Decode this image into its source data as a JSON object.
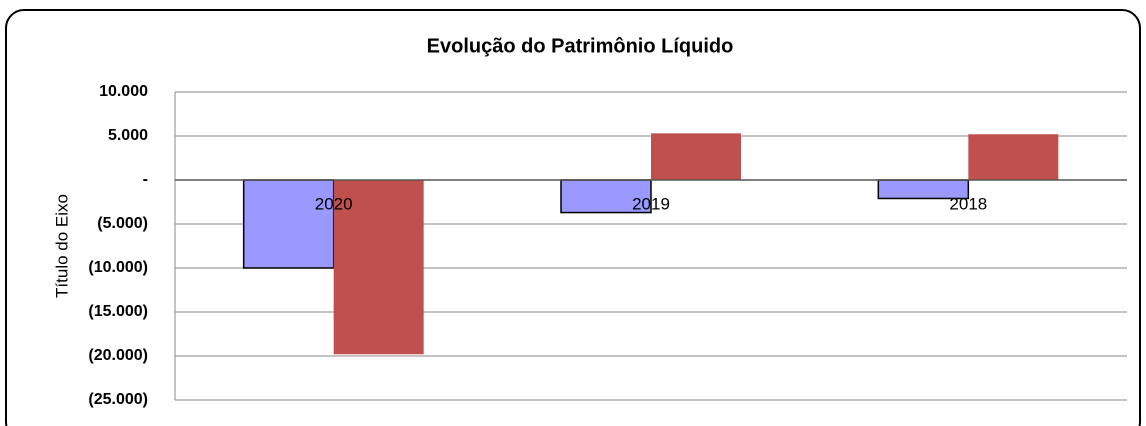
{
  "chart_data": {
    "type": "bar",
    "title": "Evolução do Patrimônio Líquido",
    "y_label": "Título do Eixo",
    "categories": [
      "2020",
      "2019",
      "2018"
    ],
    "series": [
      {
        "color": "#9999ff",
        "values": [
          -10000,
          -3700,
          -2100
        ]
      },
      {
        "color": "#c0504d",
        "values": [
          -19800,
          5300,
          5200
        ]
      }
    ],
    "ylim": [
      -25000,
      10000
    ],
    "yticks": [
      {
        "value": 10000,
        "label": "10.000"
      },
      {
        "value": 5000,
        "label": "5.000"
      },
      {
        "value": 0,
        "label": "-"
      },
      {
        "value": -5000,
        "label": "(5.000)"
      },
      {
        "value": -10000,
        "label": "(10.000)"
      },
      {
        "value": -15000,
        "label": "(15.000)"
      },
      {
        "value": -20000,
        "label": "(20.000)"
      },
      {
        "value": -25000,
        "label": "(25.000)"
      }
    ],
    "grid": true
  }
}
